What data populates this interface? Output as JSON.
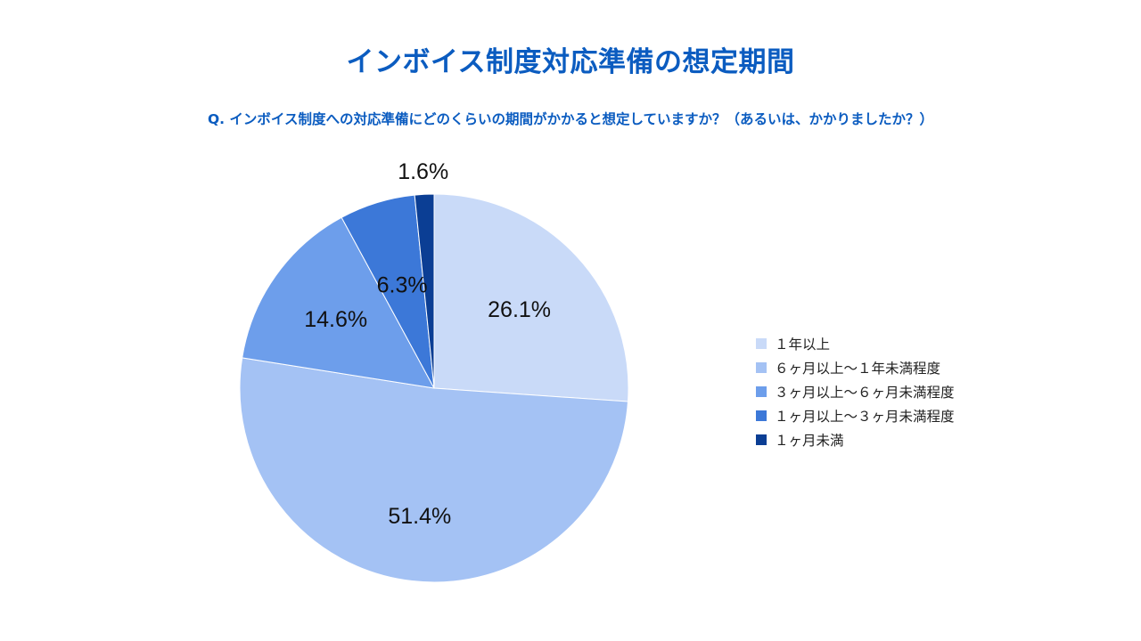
{
  "title": "インボイス制度対応準備の想定期間",
  "question": "Q. インボイス制度への対応準備にどのくらいの期間がかかると想定していますか？（あるいは、かかりましたか？）",
  "chart_data": {
    "type": "pie",
    "title": "インボイス制度対応準備の想定期間",
    "subtitle": "Q. インボイス制度への対応準備にどのくらいの期間がかかると想定していますか？（あるいは、かかりましたか？）",
    "legend_position": "right",
    "start": "12-o'clock",
    "direction": "clockwise",
    "slices": [
      {
        "name": "１年以上",
        "value": 26.1,
        "label": "26.1%",
        "color": "#c9daf8"
      },
      {
        "name": "６ヶ月以上～１年未満程度",
        "value": 51.4,
        "label": "51.4%",
        "color": "#a4c2f4"
      },
      {
        "name": "３ヶ月以上～６ヶ月未満程度",
        "value": 14.6,
        "label": "14.6%",
        "color": "#6d9eeb"
      },
      {
        "name": "１ヶ月以上～３ヶ月未満程度",
        "value": 6.3,
        "label": "6.3%",
        "color": "#3c78d8"
      },
      {
        "name": "１ヶ月未満",
        "value": 1.6,
        "label": "1.6%",
        "color": "#0b3e94"
      }
    ]
  }
}
